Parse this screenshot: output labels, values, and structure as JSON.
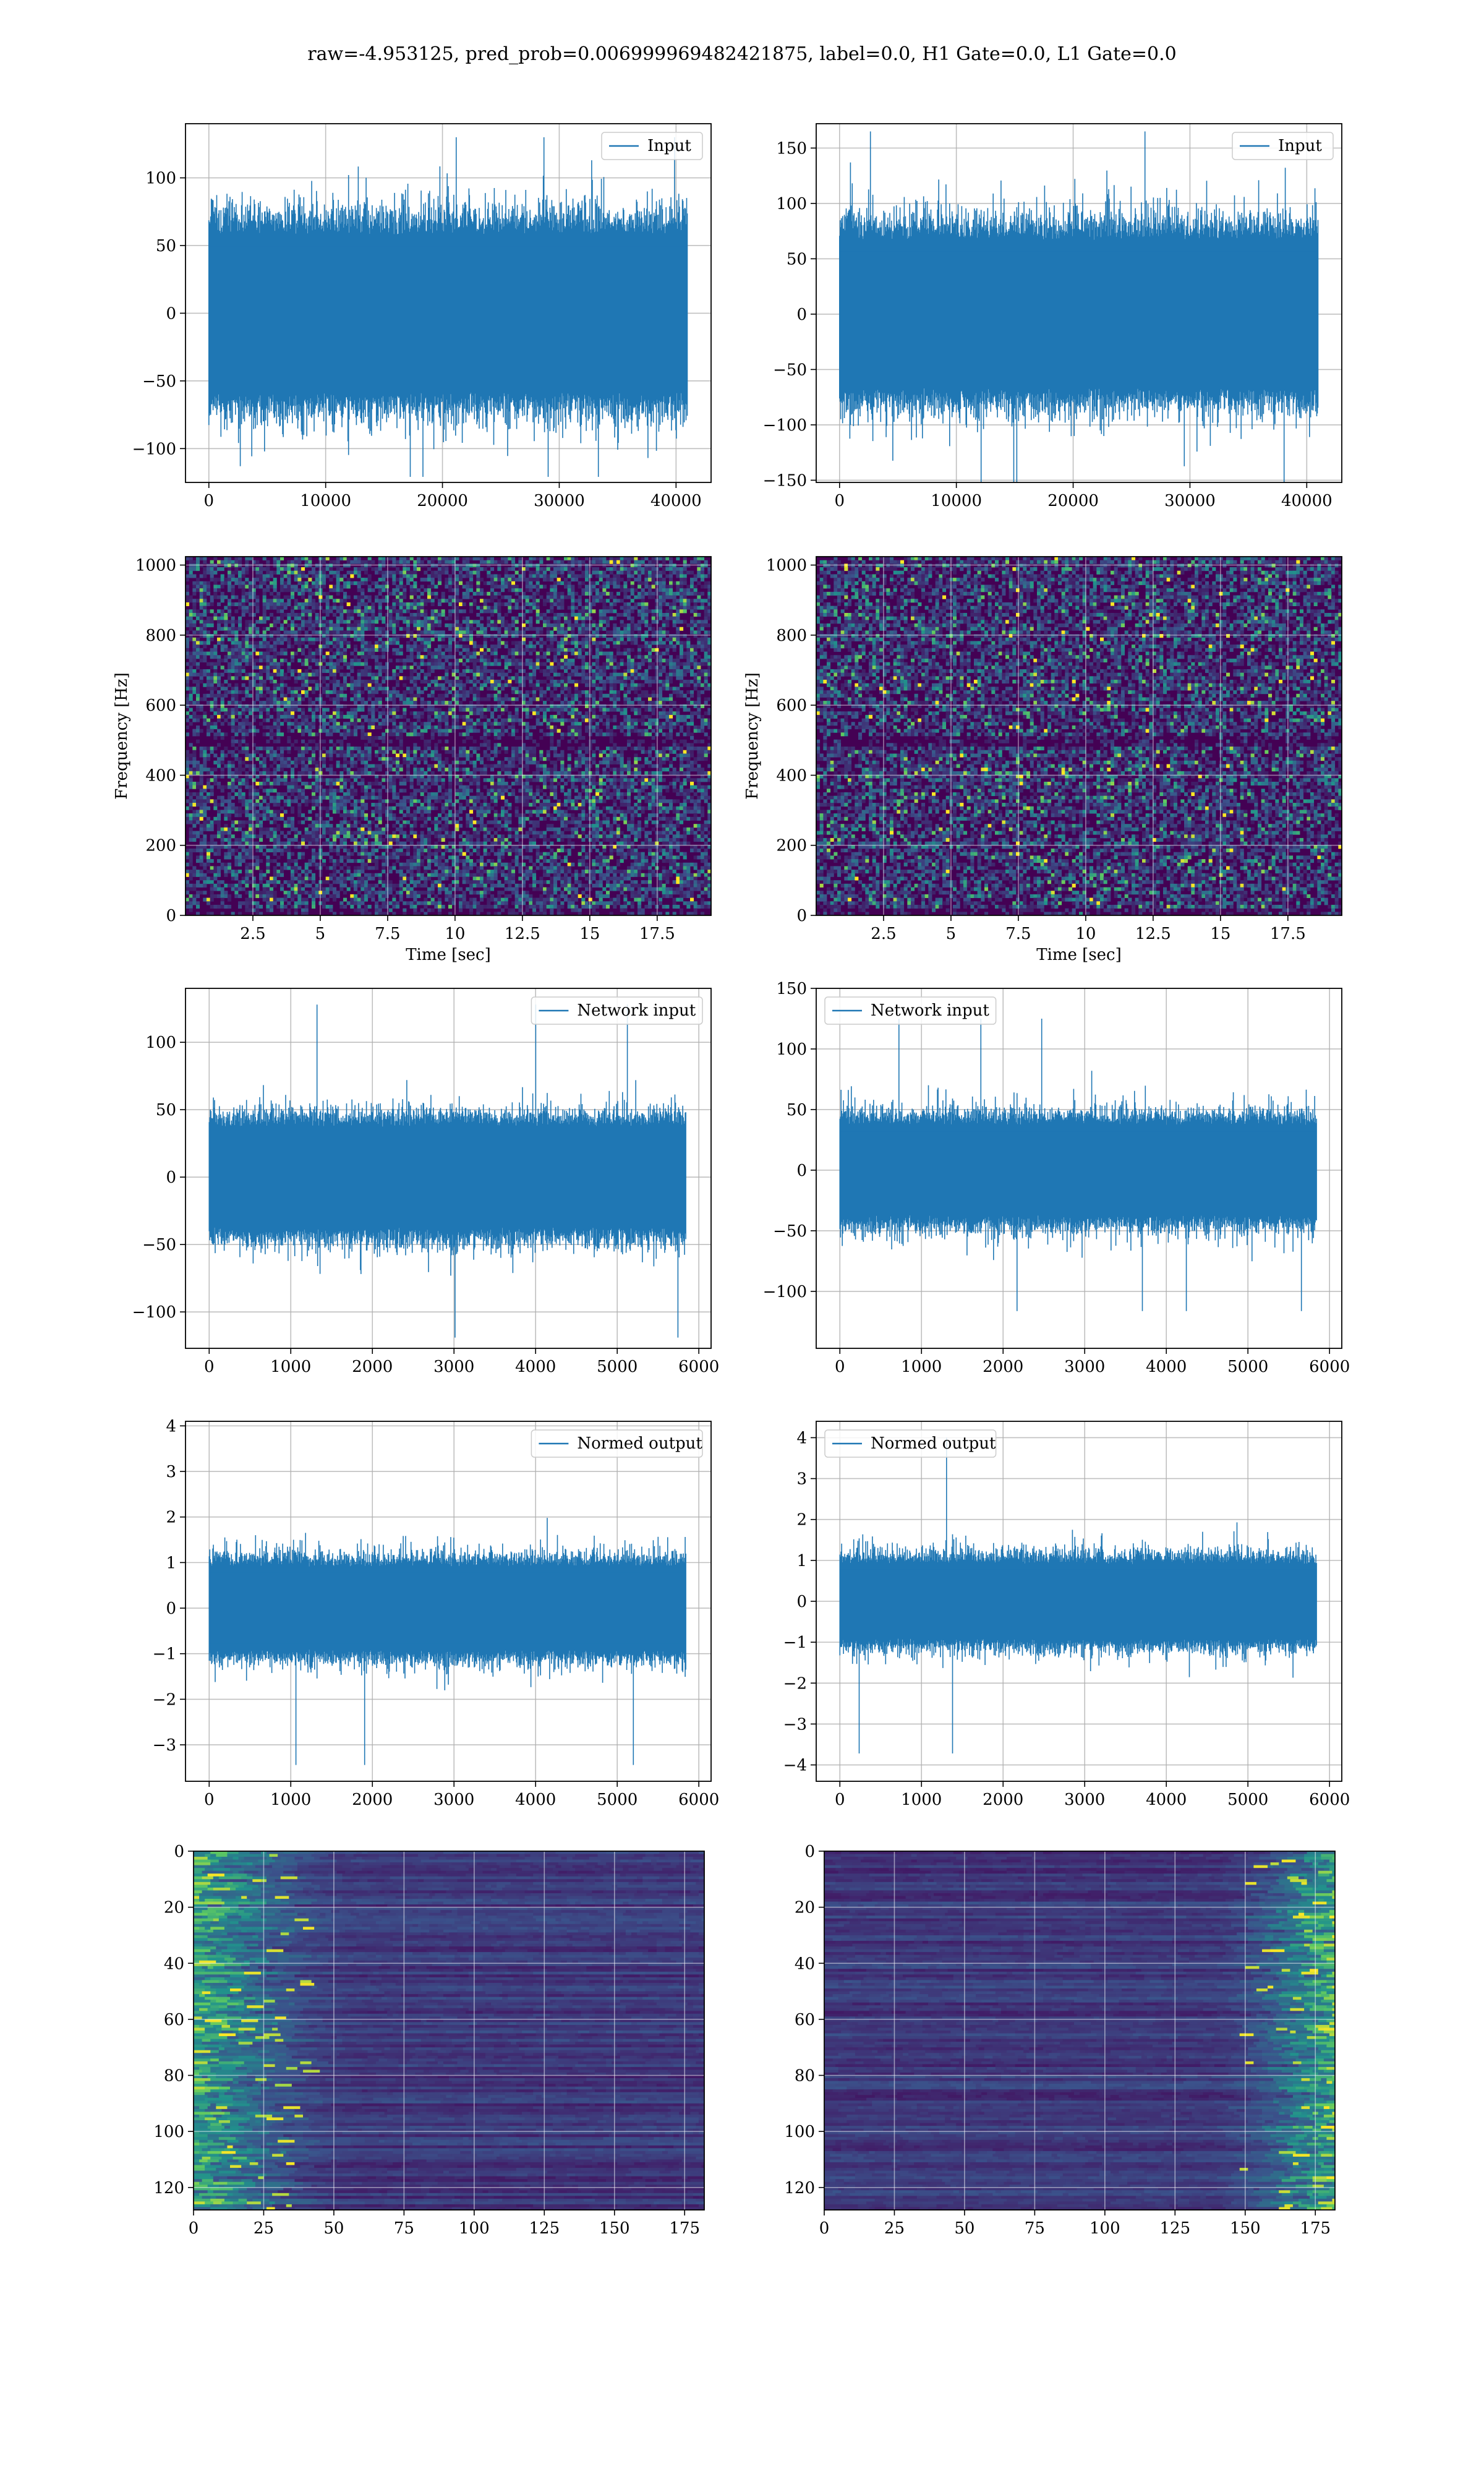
{
  "figure": {
    "suptitle": "raw=-4.953125, pred_prob=0.006999969482421875, label=0.0, H1 Gate=0.0, L1 Gate=0.0"
  },
  "colors": {
    "series": "#1f77b4",
    "grid": "#b0b0b0",
    "viridis_low": "#440154",
    "viridis_mid": "#21918c",
    "viridis_high": "#fde725"
  },
  "chart_data": [
    {
      "id": "h1-input",
      "type": "line",
      "series": [
        {
          "name": "Input"
        }
      ],
      "legend": "top-right",
      "xlim": [
        -2000,
        43000
      ],
      "ylim": [
        -125,
        140
      ],
      "xticks": [
        0,
        10000,
        20000,
        30000,
        40000
      ],
      "yticks": [
        -100,
        -50,
        0,
        50,
        100
      ],
      "n_points": 40960,
      "envelope": 70,
      "peak": 130,
      "grid": true
    },
    {
      "id": "l1-input",
      "type": "line",
      "series": [
        {
          "name": "Input"
        }
      ],
      "legend": "top-right",
      "xlim": [
        -2000,
        43000
      ],
      "ylim": [
        -152,
        172
      ],
      "xticks": [
        0,
        10000,
        20000,
        30000,
        40000
      ],
      "yticks": [
        -150,
        -100,
        -50,
        0,
        50,
        100,
        150
      ],
      "n_points": 40960,
      "envelope": 80,
      "peak": 165,
      "grid": true
    },
    {
      "id": "h1-spectrogram",
      "type": "heatmap",
      "xlabel": "Time [sec]",
      "ylabel": "Frequency [Hz]",
      "xlim": [
        0,
        19.5
      ],
      "ylim": [
        0,
        1024
      ],
      "xticks": [
        2.5,
        5.0,
        7.5,
        10.0,
        12.5,
        15.0,
        17.5
      ],
      "yticks": [
        0,
        200,
        400,
        600,
        800,
        1000
      ],
      "dark_band_hz": 500,
      "grid": true
    },
    {
      "id": "l1-spectrogram",
      "type": "heatmap",
      "xlabel": "Time [sec]",
      "ylabel": "Frequency [Hz]",
      "xlim": [
        0,
        19.5
      ],
      "ylim": [
        0,
        1024
      ],
      "xticks": [
        2.5,
        5.0,
        7.5,
        10.0,
        12.5,
        15.0,
        17.5
      ],
      "yticks": [
        0,
        200,
        400,
        600,
        800,
        1000
      ],
      "dark_band_hz": 500,
      "grid": true
    },
    {
      "id": "h1-network-input",
      "type": "line",
      "series": [
        {
          "name": "Network input"
        }
      ],
      "legend": "top-right",
      "xlim": [
        -290,
        6150
      ],
      "ylim": [
        -127,
        140
      ],
      "xticks": [
        0,
        1000,
        2000,
        3000,
        4000,
        5000,
        6000
      ],
      "yticks": [
        -100,
        -50,
        0,
        50,
        100
      ],
      "n_points": 5840,
      "envelope": 45,
      "peak": 128,
      "grid": true
    },
    {
      "id": "l1-network-input",
      "type": "line",
      "series": [
        {
          "name": "Network input"
        }
      ],
      "legend": "top-left",
      "xlim": [
        -290,
        6150
      ],
      "ylim": [
        -147,
        150
      ],
      "xticks": [
        0,
        1000,
        2000,
        3000,
        4000,
        5000,
        6000
      ],
      "yticks": [
        -100,
        -50,
        0,
        50,
        100,
        150
      ],
      "n_points": 5840,
      "envelope": 45,
      "peak": 125,
      "grid": true
    },
    {
      "id": "h1-normed-output",
      "type": "line",
      "series": [
        {
          "name": "Normed output"
        }
      ],
      "legend": "top-right",
      "xlim": [
        -290,
        6150
      ],
      "ylim": [
        -3.8,
        4.1
      ],
      "xticks": [
        0,
        1000,
        2000,
        3000,
        4000,
        5000,
        6000
      ],
      "yticks": [
        -3,
        -2,
        -1,
        0,
        1,
        2,
        3,
        4
      ],
      "n_points": 5840,
      "envelope": 1.1,
      "peak": 3.7,
      "grid": true
    },
    {
      "id": "l1-normed-output",
      "type": "line",
      "series": [
        {
          "name": "Normed output"
        }
      ],
      "legend": "top-left",
      "xlim": [
        -290,
        6150
      ],
      "ylim": [
        -4.4,
        4.4
      ],
      "xticks": [
        0,
        1000,
        2000,
        3000,
        4000,
        5000,
        6000
      ],
      "yticks": [
        -4,
        -3,
        -2,
        -1,
        0,
        1,
        2,
        3,
        4
      ],
      "n_points": 5840,
      "envelope": 1.1,
      "peak": 4.0,
      "grid": true
    },
    {
      "id": "h1-feature-map",
      "type": "heatmap",
      "xlim": [
        0,
        182
      ],
      "ylim": [
        128,
        0
      ],
      "xticks": [
        0,
        25,
        50,
        75,
        100,
        125,
        150,
        175
      ],
      "yticks": [
        0,
        20,
        40,
        60,
        80,
        100,
        120
      ],
      "bright_region": "left",
      "grid": true
    },
    {
      "id": "l1-feature-map",
      "type": "heatmap",
      "xlim": [
        0,
        182
      ],
      "ylim": [
        128,
        0
      ],
      "xticks": [
        0,
        25,
        50,
        75,
        100,
        125,
        150,
        175
      ],
      "yticks": [
        0,
        20,
        40,
        60,
        80,
        100,
        120
      ],
      "bright_region": "right",
      "grid": true
    }
  ]
}
